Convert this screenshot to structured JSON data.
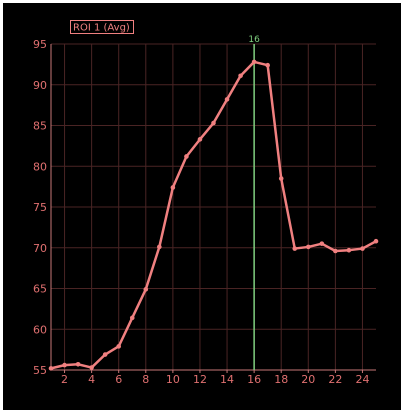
{
  "chart_data": {
    "type": "line",
    "title": "",
    "xlabel": "",
    "ylabel": "",
    "xlim": [
      1,
      25
    ],
    "ylim": [
      55,
      95
    ],
    "x_ticks": [
      2,
      4,
      6,
      8,
      10,
      12,
      14,
      16,
      18,
      20,
      22,
      24
    ],
    "y_ticks": [
      55,
      60,
      65,
      70,
      75,
      80,
      85,
      90,
      95
    ],
    "grid": true,
    "legend_position": "top-left",
    "series": [
      {
        "name": "ROI 1 (Avg)",
        "color": "#f08080",
        "x": [
          1,
          2,
          3,
          4,
          5,
          6,
          7,
          8,
          9,
          10,
          11,
          12,
          13,
          14,
          15,
          16,
          17,
          18,
          19,
          20,
          21,
          22,
          23,
          24,
          25
        ],
        "y": [
          55.2,
          55.6,
          55.7,
          55.3,
          56.9,
          57.9,
          61.4,
          64.9,
          70.1,
          77.4,
          81.2,
          83.3,
          85.3,
          88.2,
          91.1,
          92.8,
          92.4,
          78.5,
          69.9,
          70.1,
          70.5,
          69.6,
          69.7,
          69.9,
          70.8
        ]
      }
    ],
    "marker": {
      "x": 16,
      "label": "16",
      "color": "#7fcf7f"
    },
    "colors": {
      "background": "#000000",
      "grid": "#4a2424",
      "axis": "#c87878",
      "tick_text": "#e07070"
    }
  }
}
